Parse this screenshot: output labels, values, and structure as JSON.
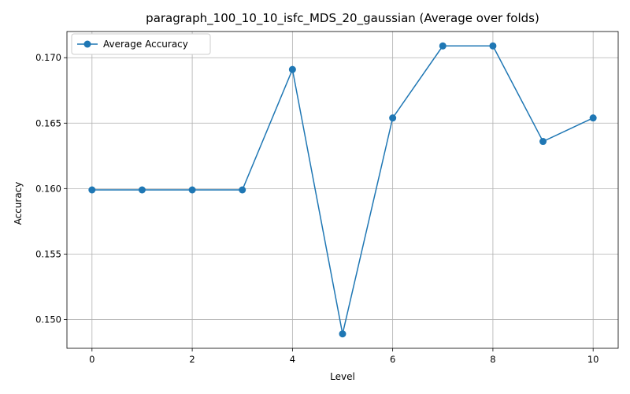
{
  "chart_data": {
    "type": "line",
    "title": "paragraph_100_10_10_isfc_MDS_20_gaussian (Average over folds)",
    "xlabel": "Level",
    "ylabel": "Accuracy",
    "xlim": [
      -0.5,
      10.5
    ],
    "ylim": [
      0.1478,
      0.172
    ],
    "xticks": [
      0,
      2,
      4,
      6,
      8,
      10
    ],
    "yticks": [
      0.15,
      0.155,
      0.16,
      0.165,
      0.17
    ],
    "ytick_labels": [
      "0.150",
      "0.155",
      "0.160",
      "0.165",
      "0.170"
    ],
    "grid": true,
    "legend_position": "top-left",
    "series": [
      {
        "name": "Average Accuracy",
        "color": "#1f77b4",
        "marker": "circle",
        "x": [
          0,
          1,
          2,
          3,
          4,
          5,
          6,
          7,
          8,
          9,
          10
        ],
        "y": [
          0.1599,
          0.1599,
          0.1599,
          0.1599,
          0.1691,
          0.1489,
          0.1654,
          0.1709,
          0.1709,
          0.1636,
          0.1654
        ]
      }
    ]
  }
}
